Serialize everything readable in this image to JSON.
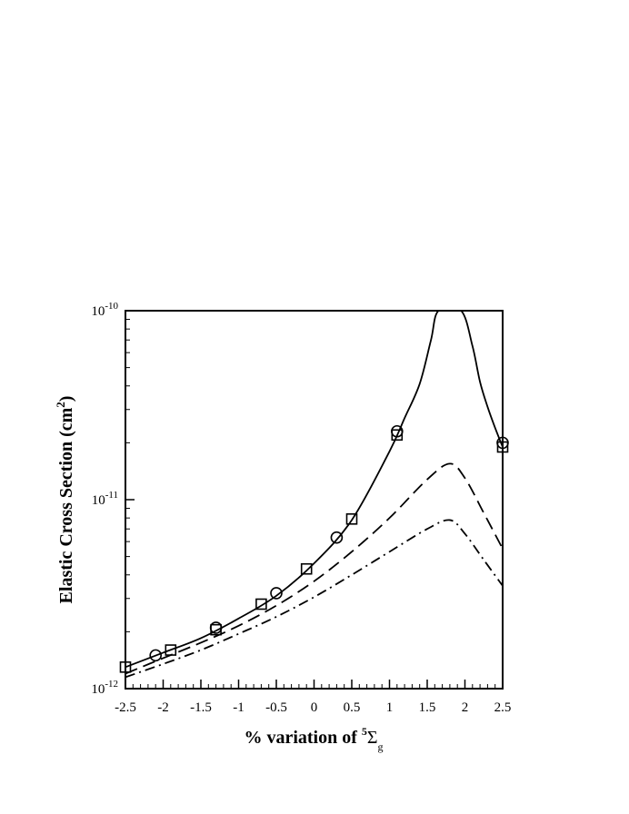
{
  "chart_data": {
    "type": "line",
    "xlabel": "% variation of",
    "xlabel_symbol": {
      "prefix_superscript": "5",
      "base": "Σ",
      "subscript": "g"
    },
    "ylabel": "Elastic Cross Section (cm",
    "ylabel_superscript": "2",
    "ylabel_suffix": ")",
    "y_scale": "log",
    "xlim": [
      -2.5,
      2.5
    ],
    "ylim": [
      1e-12,
      1e-10
    ],
    "x_ticks": [
      -2.5,
      -2,
      -1.5,
      -1,
      -0.5,
      0,
      0.5,
      1,
      1.5,
      2,
      2.5
    ],
    "x_tick_labels": [
      "-2.5",
      "-2",
      "-1.5",
      "-1",
      "-0.5",
      "0",
      "0.5",
      "1",
      "1.5",
      "2",
      "2.5"
    ],
    "y_tick_labels": [
      {
        "value": 1e-12,
        "base": "10",
        "exp": "-12"
      },
      {
        "value": 1e-11,
        "base": "10",
        "exp": "-11"
      },
      {
        "value": 1e-10,
        "base": "10",
        "exp": "-10"
      }
    ],
    "grid": false,
    "series": [
      {
        "style": "solid",
        "x": [
          -2.5,
          -2.0,
          -1.5,
          -1.0,
          -0.5,
          0.0,
          0.5,
          1.0,
          1.2,
          1.4,
          1.55,
          1.65,
          1.95,
          2.1,
          2.2,
          2.3,
          2.4,
          2.5
        ],
        "y": [
          1.3e-12,
          1.55e-12,
          1.85e-12,
          2.35e-12,
          3.1e-12,
          4.6e-12,
          7.8e-12,
          1.8e-11,
          2.7e-11,
          4.1e-11,
          7e-11,
          1e-10,
          1e-10,
          6.5e-11,
          4.2e-11,
          3.1e-11,
          2.4e-11,
          1.9e-11
        ]
      },
      {
        "style": "dashed",
        "x": [
          -2.5,
          -2.0,
          -1.5,
          -1.0,
          -0.5,
          0.0,
          0.5,
          1.0,
          1.5,
          1.8,
          2.0,
          2.25,
          2.5
        ],
        "y": [
          1.2e-12,
          1.45e-12,
          1.75e-12,
          2.15e-12,
          2.75e-12,
          3.7e-12,
          5.3e-12,
          8e-12,
          1.28e-11,
          1.55e-11,
          1.3e-11,
          8.5e-12,
          5.5e-12
        ]
      },
      {
        "style": "dashdot",
        "x": [
          -2.5,
          -2.0,
          -1.5,
          -1.0,
          -0.5,
          0.0,
          0.5,
          1.0,
          1.5,
          1.8,
          2.0,
          2.25,
          2.5
        ],
        "y": [
          1.15e-12,
          1.35e-12,
          1.6e-12,
          1.95e-12,
          2.4e-12,
          3.05e-12,
          4e-12,
          5.3e-12,
          7e-12,
          7.8e-12,
          6.6e-12,
          4.8e-12,
          3.5e-12
        ]
      },
      {
        "style": "markers-square",
        "x": [
          -2.5,
          -1.9,
          -1.3,
          -0.7,
          -0.1,
          0.5,
          1.1,
          2.5
        ],
        "y": [
          1.3e-12,
          1.6e-12,
          2.05e-12,
          2.8e-12,
          4.3e-12,
          7.9e-12,
          2.2e-11,
          1.9e-11
        ]
      },
      {
        "style": "markers-circle",
        "x": [
          -2.1,
          -1.3,
          -0.5,
          0.3,
          1.1,
          2.5
        ],
        "y": [
          1.5e-12,
          2.1e-12,
          3.2e-12,
          6.3e-12,
          2.3e-11,
          2e-11
        ]
      }
    ]
  }
}
